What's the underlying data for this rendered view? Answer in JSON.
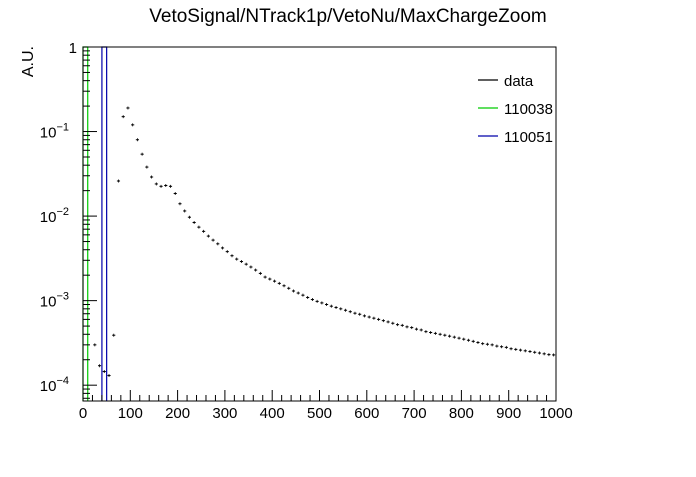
{
  "chart_data": {
    "type": "histogram",
    "title": "VetoSignal/NTrack1p/VetoNu/MaxChargeZoom",
    "ylabel": "A.U.",
    "xlabel": "",
    "xlim": [
      0,
      1000
    ],
    "ylim": [
      6.5e-05,
      1.0
    ],
    "yscale": "log",
    "grid": false,
    "legend_position": "top-right",
    "x_ticks": [
      {
        "v": 0,
        "label": "0"
      },
      {
        "v": 100,
        "label": "100"
      },
      {
        "v": 200,
        "label": "200"
      },
      {
        "v": 300,
        "label": "300"
      },
      {
        "v": 400,
        "label": "400"
      },
      {
        "v": 500,
        "label": "500"
      },
      {
        "v": 600,
        "label": "600"
      },
      {
        "v": 700,
        "label": "700"
      },
      {
        "v": 800,
        "label": "800"
      },
      {
        "v": 900,
        "label": "900"
      },
      {
        "v": 1000,
        "label": "1000"
      }
    ],
    "y_ticks": [
      {
        "v": 0.0001,
        "base": "10",
        "exp": "−4"
      },
      {
        "v": 0.001,
        "base": "10",
        "exp": "−3"
      },
      {
        "v": 0.01,
        "base": "10",
        "exp": "−2"
      },
      {
        "v": 0.1,
        "base": "10",
        "exp": "−1"
      },
      {
        "v": 1,
        "base": "1",
        "exp": ""
      }
    ],
    "series": [
      {
        "name": "data",
        "color": "#000000",
        "style": "markers",
        "bin_width": 10,
        "x": [
          25,
          35,
          45,
          55,
          65,
          75,
          85,
          95,
          105,
          115,
          125,
          135,
          145,
          155,
          165,
          175,
          185,
          195,
          205,
          215,
          225,
          235,
          245,
          255,
          265,
          275,
          285,
          295,
          305,
          315,
          325,
          335,
          345,
          355,
          365,
          375,
          385,
          395,
          405,
          415,
          425,
          435,
          445,
          455,
          465,
          475,
          485,
          495,
          505,
          515,
          525,
          535,
          545,
          555,
          565,
          575,
          585,
          595,
          605,
          615,
          625,
          635,
          645,
          655,
          665,
          675,
          685,
          695,
          705,
          715,
          725,
          735,
          745,
          755,
          765,
          775,
          785,
          795,
          805,
          815,
          825,
          835,
          845,
          855,
          865,
          875,
          885,
          895,
          905,
          915,
          925,
          935,
          945,
          955,
          965,
          975,
          985,
          995
        ],
        "y": [
          0.0003,
          0.00017,
          0.000145,
          0.00013,
          0.00039,
          0.026,
          0.15,
          0.19,
          0.12,
          0.08,
          0.054,
          0.038,
          0.029,
          0.024,
          0.0225,
          0.023,
          0.0225,
          0.0185,
          0.014,
          0.0115,
          0.0097,
          0.0084,
          0.0074,
          0.0066,
          0.0058,
          0.0052,
          0.0047,
          0.0042,
          0.0038,
          0.0034,
          0.0031,
          0.0029,
          0.0027,
          0.0025,
          0.0023,
          0.0021,
          0.0019,
          0.0018,
          0.0017,
          0.0016,
          0.0015,
          0.0014,
          0.0013,
          0.00123,
          0.00116,
          0.00109,
          0.00103,
          0.00098,
          0.00094,
          0.0009,
          0.00086,
          0.00083,
          0.0008,
          0.00077,
          0.00074,
          0.00071,
          0.00069,
          0.00066,
          0.00064,
          0.00062,
          0.0006,
          0.00058,
          0.00056,
          0.00054,
          0.00052,
          0.00051,
          0.00049,
          0.00048,
          0.00046,
          0.00045,
          0.00043,
          0.00042,
          0.00041,
          0.0004,
          0.00039,
          0.00038,
          0.00037,
          0.00036,
          0.00035,
          0.00034,
          0.00033,
          0.00032,
          0.00031,
          0.000305,
          0.0003,
          0.00029,
          0.000285,
          0.00028,
          0.00027,
          0.000265,
          0.00026,
          0.000255,
          0.00025,
          0.000245,
          0.00024,
          0.000235,
          0.00023,
          0.000228
        ]
      },
      {
        "name": "110038",
        "color": "#00cc00",
        "style": "hist",
        "bins": [
          {
            "x0": 0,
            "x1": 10,
            "y": 1.0
          }
        ]
      },
      {
        "name": "110051",
        "color": "#0000aa",
        "style": "hist",
        "bins": [
          {
            "x0": 40,
            "x1": 50,
            "y": 1.0
          }
        ]
      }
    ]
  }
}
